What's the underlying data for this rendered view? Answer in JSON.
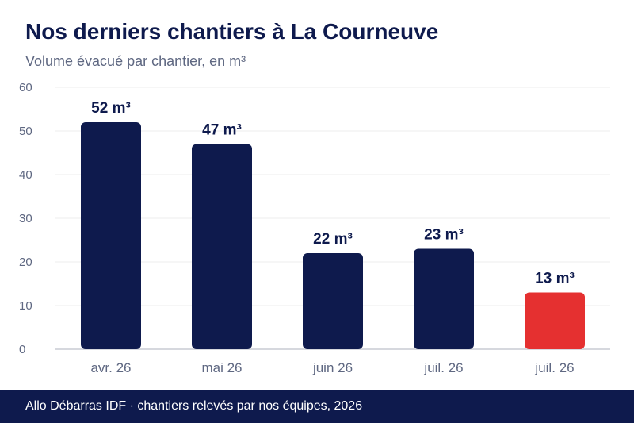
{
  "header": {
    "title": "Nos derniers chantiers à La Courneuve",
    "subtitle": "Volume évacué par chantier, en m³"
  },
  "chart_data": {
    "type": "bar",
    "title": "Nos derniers chantiers à La Courneuve",
    "subtitle": "Volume évacué par chantier, en m³",
    "categories": [
      "avr. 26",
      "mai 26",
      "juin 26",
      "juil. 26",
      "juil. 26"
    ],
    "values": [
      52,
      47,
      22,
      23,
      13
    ],
    "value_labels": [
      "52 m³",
      "47 m³",
      "22 m³",
      "23 m³",
      "13 m³"
    ],
    "yticks": [
      0,
      10,
      20,
      30,
      40,
      50,
      60
    ],
    "ylim": [
      0,
      60
    ],
    "grid": true,
    "legend": "none",
    "colors": {
      "bar": "#0e1a4d",
      "highlight": "#e53030",
      "highlight_index": 4,
      "grid": "#eeeeee",
      "axis": "#c9cbd3",
      "tick_text": "#5f6882",
      "label_text": "#0e1a4d"
    }
  },
  "footer": {
    "text": "Allo Débarras IDF · chantiers relevés par nos équipes, 2026"
  }
}
